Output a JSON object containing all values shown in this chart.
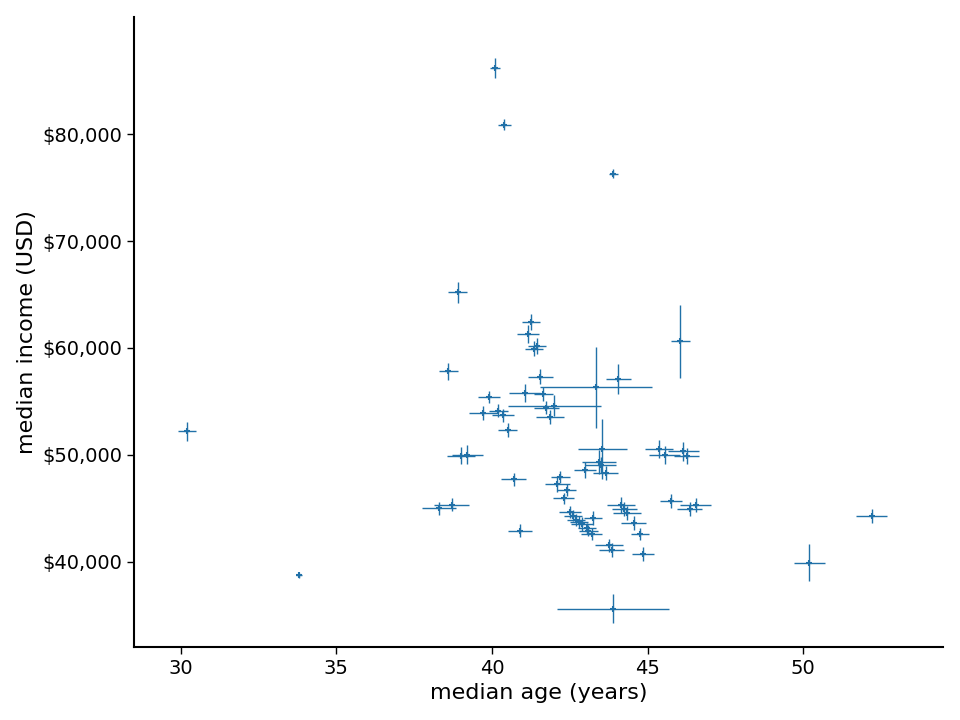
{
  "xlabel": "median age (years)",
  "ylabel": "median income (USD)",
  "point_color": "#2171a8",
  "xlim": [
    28.5,
    54.5
  ],
  "ylim": [
    32000,
    91000
  ],
  "xticks": [
    30,
    35,
    40,
    45,
    50
  ],
  "yticks": [
    40000,
    50000,
    60000,
    70000,
    80000
  ],
  "figsize": [
    9.6,
    7.2
  ],
  "counties": [
    {
      "age": 30.2,
      "income": 52200,
      "age_err": 0.3,
      "income_err": 900
    },
    {
      "age": 33.8,
      "income": 38700,
      "age_err": 0.1,
      "income_err": 200
    },
    {
      "age": 38.3,
      "income": 45000,
      "age_err": 0.55,
      "income_err": 600
    },
    {
      "age": 38.7,
      "income": 45300,
      "age_err": 0.55,
      "income_err": 600
    },
    {
      "age": 39.0,
      "income": 49900,
      "age_err": 0.45,
      "income_err": 800
    },
    {
      "age": 39.2,
      "income": 50000,
      "age_err": 0.5,
      "income_err": 900
    },
    {
      "age": 38.6,
      "income": 57800,
      "age_err": 0.3,
      "income_err": 800
    },
    {
      "age": 38.9,
      "income": 65200,
      "age_err": 0.3,
      "income_err": 1000
    },
    {
      "age": 39.7,
      "income": 53900,
      "age_err": 0.45,
      "income_err": 700
    },
    {
      "age": 39.9,
      "income": 55400,
      "age_err": 0.35,
      "income_err": 600
    },
    {
      "age": 40.1,
      "income": 86200,
      "age_err": 0.15,
      "income_err": 900
    },
    {
      "age": 40.4,
      "income": 80900,
      "age_err": 0.2,
      "income_err": 500
    },
    {
      "age": 40.2,
      "income": 54100,
      "age_err": 0.3,
      "income_err": 600
    },
    {
      "age": 40.35,
      "income": 53700,
      "age_err": 0.35,
      "income_err": 600
    },
    {
      "age": 40.5,
      "income": 52300,
      "age_err": 0.3,
      "income_err": 650
    },
    {
      "age": 40.7,
      "income": 47700,
      "age_err": 0.4,
      "income_err": 600
    },
    {
      "age": 40.9,
      "income": 42900,
      "age_err": 0.4,
      "income_err": 650
    },
    {
      "age": 41.05,
      "income": 55800,
      "age_err": 0.5,
      "income_err": 850
    },
    {
      "age": 41.15,
      "income": 61300,
      "age_err": 0.35,
      "income_err": 800
    },
    {
      "age": 41.25,
      "income": 62400,
      "age_err": 0.3,
      "income_err": 750
    },
    {
      "age": 41.35,
      "income": 59900,
      "age_err": 0.3,
      "income_err": 700
    },
    {
      "age": 41.45,
      "income": 60200,
      "age_err": 0.3,
      "income_err": 750
    },
    {
      "age": 41.55,
      "income": 57300,
      "age_err": 0.4,
      "income_err": 700
    },
    {
      "age": 41.65,
      "income": 55700,
      "age_err": 0.3,
      "income_err": 650
    },
    {
      "age": 41.75,
      "income": 54400,
      "age_err": 0.4,
      "income_err": 600
    },
    {
      "age": 41.85,
      "income": 53500,
      "age_err": 0.45,
      "income_err": 650
    },
    {
      "age": 42.0,
      "income": 54600,
      "age_err": 1.5,
      "income_err": 950
    },
    {
      "age": 42.1,
      "income": 47300,
      "age_err": 0.4,
      "income_err": 750
    },
    {
      "age": 42.2,
      "income": 47900,
      "age_err": 0.3,
      "income_err": 550
    },
    {
      "age": 42.3,
      "income": 45900,
      "age_err": 0.35,
      "income_err": 550
    },
    {
      "age": 42.4,
      "income": 46700,
      "age_err": 0.3,
      "income_err": 550
    },
    {
      "age": 42.5,
      "income": 44600,
      "age_err": 0.35,
      "income_err": 550
    },
    {
      "age": 42.6,
      "income": 44300,
      "age_err": 0.3,
      "income_err": 550
    },
    {
      "age": 42.7,
      "income": 43900,
      "age_err": 0.3,
      "income_err": 550
    },
    {
      "age": 42.8,
      "income": 43700,
      "age_err": 0.3,
      "income_err": 550
    },
    {
      "age": 42.9,
      "income": 43500,
      "age_err": 0.35,
      "income_err": 650
    },
    {
      "age": 43.0,
      "income": 48600,
      "age_err": 0.35,
      "income_err": 750
    },
    {
      "age": 43.05,
      "income": 43100,
      "age_err": 0.3,
      "income_err": 550
    },
    {
      "age": 43.1,
      "income": 42900,
      "age_err": 0.3,
      "income_err": 550
    },
    {
      "age": 43.2,
      "income": 42600,
      "age_err": 0.35,
      "income_err": 550
    },
    {
      "age": 43.25,
      "income": 44100,
      "age_err": 0.3,
      "income_err": 650
    },
    {
      "age": 43.35,
      "income": 56300,
      "age_err": 1.8,
      "income_err": 3800
    },
    {
      "age": 43.45,
      "income": 49300,
      "age_err": 0.55,
      "income_err": 1100
    },
    {
      "age": 43.5,
      "income": 49000,
      "age_err": 0.5,
      "income_err": 750
    },
    {
      "age": 43.55,
      "income": 50500,
      "age_err": 0.8,
      "income_err": 2800
    },
    {
      "age": 43.65,
      "income": 48300,
      "age_err": 0.4,
      "income_err": 650
    },
    {
      "age": 43.75,
      "income": 41500,
      "age_err": 0.45,
      "income_err": 650
    },
    {
      "age": 43.85,
      "income": 41100,
      "age_err": 0.4,
      "income_err": 650
    },
    {
      "age": 43.9,
      "income": 35600,
      "age_err": 1.8,
      "income_err": 1400
    },
    {
      "age": 44.05,
      "income": 57100,
      "age_err": 0.4,
      "income_err": 1400
    },
    {
      "age": 44.15,
      "income": 45300,
      "age_err": 0.45,
      "income_err": 750
    },
    {
      "age": 44.25,
      "income": 44900,
      "age_err": 0.4,
      "income_err": 650
    },
    {
      "age": 44.35,
      "income": 44500,
      "age_err": 0.45,
      "income_err": 650
    },
    {
      "age": 44.55,
      "income": 43600,
      "age_err": 0.4,
      "income_err": 650
    },
    {
      "age": 44.75,
      "income": 42600,
      "age_err": 0.3,
      "income_err": 550
    },
    {
      "age": 44.85,
      "income": 40700,
      "age_err": 0.35,
      "income_err": 650
    },
    {
      "age": 45.35,
      "income": 50500,
      "age_err": 0.45,
      "income_err": 850
    },
    {
      "age": 45.55,
      "income": 50000,
      "age_err": 0.5,
      "income_err": 850
    },
    {
      "age": 45.75,
      "income": 45700,
      "age_err": 0.35,
      "income_err": 650
    },
    {
      "age": 46.05,
      "income": 60600,
      "age_err": 0.3,
      "income_err": 3400
    },
    {
      "age": 46.15,
      "income": 50300,
      "age_err": 0.5,
      "income_err": 850
    },
    {
      "age": 46.25,
      "income": 49900,
      "age_err": 0.4,
      "income_err": 750
    },
    {
      "age": 46.35,
      "income": 44900,
      "age_err": 0.4,
      "income_err": 650
    },
    {
      "age": 46.55,
      "income": 45300,
      "age_err": 0.5,
      "income_err": 650
    },
    {
      "age": 50.2,
      "income": 39900,
      "age_err": 0.5,
      "income_err": 1700
    },
    {
      "age": 52.2,
      "income": 44300,
      "age_err": 0.5,
      "income_err": 650
    },
    {
      "age": 43.9,
      "income": 76300,
      "age_err": 0.15,
      "income_err": 400
    }
  ]
}
